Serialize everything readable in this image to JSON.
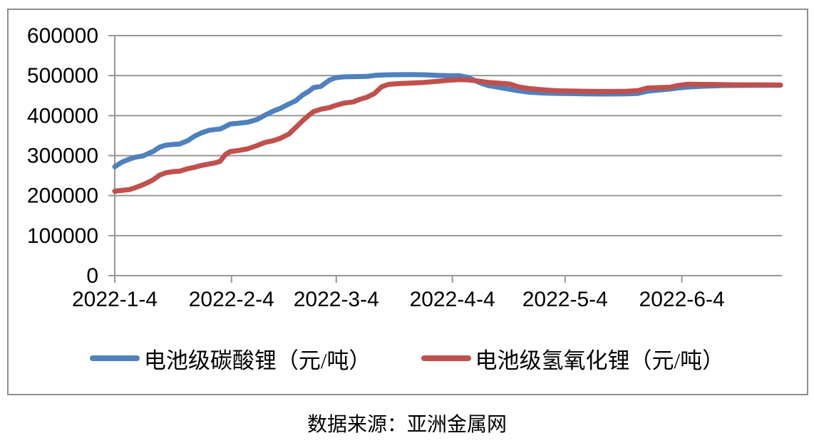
{
  "caption": "数据来源：亚洲金属网",
  "chart_data": {
    "type": "line",
    "title": "",
    "xlabel": "",
    "ylabel": "",
    "ylim": [
      0,
      600000
    ],
    "yticks": [
      0,
      100000,
      200000,
      300000,
      400000,
      500000,
      600000
    ],
    "grid": true,
    "legend_position": "bottom",
    "colors": {
      "grid": "#969696",
      "axis": "#969696",
      "text": "#000000"
    },
    "xticks": [
      {
        "label": "2022-1-4",
        "t": 0.0
      },
      {
        "label": "2022-2-4",
        "t": 0.175
      },
      {
        "label": "2022-3-4",
        "t": 0.332
      },
      {
        "label": "2022-4-4",
        "t": 0.506
      },
      {
        "label": "2022-5-4",
        "t": 0.675
      },
      {
        "label": "2022-6-4",
        "t": 0.85
      }
    ],
    "series": [
      {
        "name": "电池级碳酸锂（元/吨）",
        "color": "#4F81BD",
        "points": [
          [
            0.0,
            272000
          ],
          [
            0.01,
            283000
          ],
          [
            0.02,
            290000
          ],
          [
            0.031,
            296000
          ],
          [
            0.042,
            299000
          ],
          [
            0.05,
            305000
          ],
          [
            0.058,
            311000
          ],
          [
            0.067,
            321000
          ],
          [
            0.076,
            326000
          ],
          [
            0.087,
            328000
          ],
          [
            0.097,
            329000
          ],
          [
            0.109,
            337000
          ],
          [
            0.12,
            349000
          ],
          [
            0.13,
            357000
          ],
          [
            0.141,
            363000
          ],
          [
            0.151,
            365500
          ],
          [
            0.158,
            366500
          ],
          [
            0.166,
            373000
          ],
          [
            0.173,
            379000
          ],
          [
            0.186,
            381000
          ],
          [
            0.199,
            383500
          ],
          [
            0.213,
            390000
          ],
          [
            0.225,
            401000
          ],
          [
            0.237,
            411000
          ],
          [
            0.248,
            418000
          ],
          [
            0.261,
            429000
          ],
          [
            0.271,
            437000
          ],
          [
            0.282,
            452000
          ],
          [
            0.291,
            461000
          ],
          [
            0.298,
            470000
          ],
          [
            0.309,
            473000
          ],
          [
            0.322,
            489000
          ],
          [
            0.332,
            495000
          ],
          [
            0.343,
            497000
          ],
          [
            0.357,
            497500
          ],
          [
            0.378,
            498000
          ],
          [
            0.392,
            501000
          ],
          [
            0.41,
            502000
          ],
          [
            0.444,
            502500
          ],
          [
            0.464,
            502000
          ],
          [
            0.485,
            500500
          ],
          [
            0.501,
            500000
          ],
          [
            0.517,
            499500
          ],
          [
            0.528,
            496000
          ],
          [
            0.538,
            489000
          ],
          [
            0.549,
            481000
          ],
          [
            0.56,
            475000
          ],
          [
            0.576,
            470500
          ],
          [
            0.592,
            466000
          ],
          [
            0.605,
            462000
          ],
          [
            0.619,
            459000
          ],
          [
            0.635,
            457000
          ],
          [
            0.651,
            456000
          ],
          [
            0.667,
            455500
          ],
          [
            0.683,
            455000
          ],
          [
            0.704,
            454500
          ],
          [
            0.725,
            454000
          ],
          [
            0.747,
            454000
          ],
          [
            0.768,
            454500
          ],
          [
            0.784,
            455500
          ],
          [
            0.798,
            461000
          ],
          [
            0.816,
            464000
          ],
          [
            0.832,
            466500
          ],
          [
            0.843,
            469000
          ],
          [
            0.859,
            471500
          ],
          [
            0.88,
            473500
          ],
          [
            0.907,
            475000
          ],
          [
            0.939,
            475500
          ],
          [
            0.971,
            475800
          ],
          [
            0.998,
            476000
          ]
        ]
      },
      {
        "name": "电池级氢氧化锂（元/吨）",
        "color": "#C0504D",
        "points": [
          [
            0.0,
            211000
          ],
          [
            0.012,
            213500
          ],
          [
            0.022,
            215000
          ],
          [
            0.031,
            220000
          ],
          [
            0.042,
            227000
          ],
          [
            0.05,
            233000
          ],
          [
            0.058,
            240000
          ],
          [
            0.067,
            251000
          ],
          [
            0.076,
            257000
          ],
          [
            0.087,
            260000
          ],
          [
            0.097,
            261000
          ],
          [
            0.109,
            267000
          ],
          [
            0.12,
            271000
          ],
          [
            0.13,
            275500
          ],
          [
            0.141,
            279000
          ],
          [
            0.151,
            282000
          ],
          [
            0.158,
            286000
          ],
          [
            0.166,
            303000
          ],
          [
            0.173,
            310000
          ],
          [
            0.186,
            313000
          ],
          [
            0.199,
            317000
          ],
          [
            0.213,
            325000
          ],
          [
            0.225,
            333000
          ],
          [
            0.237,
            337000
          ],
          [
            0.248,
            343000
          ],
          [
            0.261,
            354000
          ],
          [
            0.271,
            370000
          ],
          [
            0.282,
            388000
          ],
          [
            0.291,
            401000
          ],
          [
            0.298,
            410000
          ],
          [
            0.309,
            416000
          ],
          [
            0.322,
            420000
          ],
          [
            0.332,
            426000
          ],
          [
            0.343,
            431000
          ],
          [
            0.357,
            434000
          ],
          [
            0.368,
            441000
          ],
          [
            0.378,
            446000
          ],
          [
            0.389,
            455000
          ],
          [
            0.4,
            472000
          ],
          [
            0.41,
            478000
          ],
          [
            0.426,
            480000
          ],
          [
            0.444,
            481500
          ],
          [
            0.464,
            483000
          ],
          [
            0.485,
            486000
          ],
          [
            0.501,
            488500
          ],
          [
            0.517,
            490000
          ],
          [
            0.531,
            489000
          ],
          [
            0.546,
            486000
          ],
          [
            0.56,
            483000
          ],
          [
            0.576,
            481000
          ],
          [
            0.592,
            479000
          ],
          [
            0.605,
            472000
          ],
          [
            0.619,
            468000
          ],
          [
            0.635,
            465500
          ],
          [
            0.651,
            463500
          ],
          [
            0.667,
            462000
          ],
          [
            0.683,
            461500
          ],
          [
            0.704,
            461000
          ],
          [
            0.725,
            460500
          ],
          [
            0.747,
            460500
          ],
          [
            0.768,
            461000
          ],
          [
            0.784,
            462500
          ],
          [
            0.798,
            469000
          ],
          [
            0.816,
            470000
          ],
          [
            0.832,
            471000
          ],
          [
            0.843,
            475000
          ],
          [
            0.859,
            478500
          ],
          [
            0.88,
            478000
          ],
          [
            0.907,
            477500
          ],
          [
            0.939,
            477000
          ],
          [
            0.971,
            477000
          ],
          [
            0.998,
            476500
          ]
        ]
      }
    ]
  }
}
